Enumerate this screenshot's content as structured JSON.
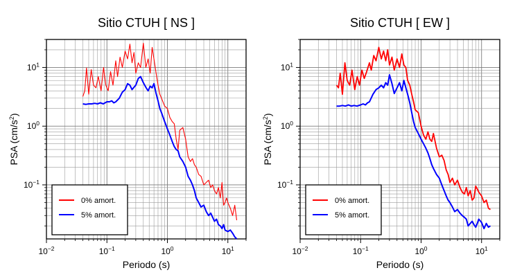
{
  "chart_data": [
    {
      "type": "line",
      "title": "Sitio CTUH [ NS ]",
      "xlabel": "Periodo (s)",
      "ylabel": "PSA (cm/s²)",
      "x_scale": "log",
      "y_scale": "log",
      "xlim": [
        0.01,
        20
      ],
      "ylim": [
        0.012,
        30
      ],
      "grid": true,
      "legend_position": "bottom-left",
      "x_tick_labels": [
        "10−2",
        "10−1",
        "100",
        "101"
      ],
      "y_tick_labels": [
        "10−1",
        "100",
        "101"
      ],
      "series": [
        {
          "name": "0% amort.",
          "color": "#ff0000",
          "x": [
            0.04,
            0.043,
            0.046,
            0.05,
            0.055,
            0.06,
            0.066,
            0.072,
            0.08,
            0.088,
            0.096,
            0.105,
            0.115,
            0.126,
            0.14,
            0.15,
            0.165,
            0.18,
            0.2,
            0.22,
            0.24,
            0.26,
            0.28,
            0.3,
            0.33,
            0.36,
            0.4,
            0.44,
            0.48,
            0.52,
            0.56,
            0.6,
            0.65,
            0.7,
            0.75,
            0.8,
            0.9,
            1.0,
            1.1,
            1.2,
            1.3,
            1.4,
            1.5,
            1.6,
            1.8,
            2.0,
            2.2,
            2.4,
            2.6,
            2.8,
            3.0,
            3.3,
            3.6,
            4.0,
            4.4,
            4.8,
            5.2,
            5.6,
            6.0,
            6.5,
            7.0,
            7.5,
            8.0,
            8.5,
            9.0,
            9.5,
            10.0,
            11.0,
            12.0,
            13.0,
            14.0
          ],
          "y": [
            3.2,
            4.0,
            9.8,
            3.5,
            9.2,
            5.0,
            4.5,
            7.0,
            4.0,
            10.0,
            5.0,
            4.0,
            8.5,
            5.0,
            13.0,
            7.0,
            15.0,
            10.0,
            19.0,
            14.0,
            25.0,
            12.0,
            18.0,
            8.0,
            12.0,
            10.0,
            26.0,
            10.0,
            14.0,
            8.0,
            22.0,
            14.0,
            8.0,
            5.0,
            3.5,
            3.0,
            2.2,
            2.0,
            1.4,
            1.2,
            1.1,
            0.6,
            0.4,
            0.85,
            0.95,
            0.6,
            0.3,
            0.25,
            0.28,
            0.22,
            0.2,
            0.15,
            0.14,
            0.1,
            0.11,
            0.12,
            0.09,
            0.1,
            0.08,
            0.07,
            0.09,
            0.06,
            0.11,
            0.045,
            0.05,
            0.06,
            0.05,
            0.04,
            0.03,
            0.045,
            0.025
          ]
        },
        {
          "name": "5% amort.",
          "color": "#0000ff",
          "x": [
            0.04,
            0.045,
            0.05,
            0.056,
            0.063,
            0.07,
            0.078,
            0.087,
            0.1,
            0.11,
            0.12,
            0.13,
            0.14,
            0.16,
            0.18,
            0.2,
            0.22,
            0.24,
            0.26,
            0.28,
            0.3,
            0.33,
            0.36,
            0.4,
            0.44,
            0.48,
            0.52,
            0.56,
            0.6,
            0.65,
            0.7,
            0.75,
            0.8,
            0.9,
            1.0,
            1.1,
            1.2,
            1.3,
            1.4,
            1.5,
            1.6,
            1.8,
            2.0,
            2.2,
            2.4,
            2.6,
            2.8,
            3.0,
            3.3,
            3.6,
            4.0,
            4.4,
            4.8,
            5.2,
            5.6,
            6.0,
            6.5,
            7.0,
            7.5,
            8.0,
            8.5,
            9.0,
            10.0,
            11.0,
            12.0,
            13.0,
            14.0
          ],
          "y": [
            2.4,
            2.35,
            2.4,
            2.4,
            2.45,
            2.4,
            2.5,
            2.4,
            2.6,
            2.6,
            2.7,
            2.5,
            2.6,
            3.0,
            3.8,
            4.2,
            5.3,
            5.0,
            4.2,
            4.6,
            5.0,
            6.5,
            7.0,
            5.5,
            4.6,
            4.0,
            4.8,
            4.5,
            5.3,
            3.6,
            2.7,
            2.0,
            1.7,
            1.2,
            0.9,
            0.7,
            0.55,
            0.45,
            0.4,
            0.38,
            0.3,
            0.25,
            0.2,
            0.14,
            0.12,
            0.1,
            0.08,
            0.06,
            0.05,
            0.042,
            0.045,
            0.035,
            0.03,
            0.033,
            0.028,
            0.024,
            0.026,
            0.021,
            0.02,
            0.018,
            0.021,
            0.017,
            0.016,
            0.017,
            0.015,
            0.013,
            0.012
          ]
        }
      ]
    },
    {
      "type": "line",
      "title": "Sitio CTUH [ EW ]",
      "xlabel": "Periodo (s)",
      "ylabel": "PSA (cm/s²)",
      "x_scale": "log",
      "y_scale": "log",
      "xlim": [
        0.01,
        20
      ],
      "ylim": [
        0.012,
        30
      ],
      "grid": true,
      "legend_position": "bottom-left",
      "x_tick_labels": [
        "10−2",
        "10−1",
        "100",
        "101"
      ],
      "y_tick_labels": [
        "10−1",
        "100",
        "101"
      ],
      "series": [
        {
          "name": "0% amort.",
          "color": "#ff0000",
          "x": [
            0.04,
            0.043,
            0.046,
            0.05,
            0.055,
            0.06,
            0.066,
            0.072,
            0.08,
            0.088,
            0.096,
            0.105,
            0.115,
            0.126,
            0.14,
            0.15,
            0.165,
            0.18,
            0.2,
            0.22,
            0.24,
            0.26,
            0.28,
            0.3,
            0.33,
            0.36,
            0.4,
            0.44,
            0.48,
            0.52,
            0.56,
            0.6,
            0.65,
            0.7,
            0.75,
            0.8,
            0.9,
            1.0,
            1.1,
            1.2,
            1.3,
            1.4,
            1.5,
            1.6,
            1.8,
            2.0,
            2.2,
            2.4,
            2.6,
            2.8,
            3.0,
            3.3,
            3.6,
            4.0,
            4.4,
            4.8,
            5.2,
            5.6,
            6.0,
            6.5,
            7.0,
            7.5,
            8.0,
            8.5,
            9.0,
            10.0,
            11.0,
            12.0,
            13.0,
            14.0
          ],
          "y": [
            5.0,
            4.5,
            8.0,
            3.5,
            12.0,
            6.0,
            5.0,
            9.0,
            4.2,
            7.0,
            5.0,
            9.0,
            6.5,
            8.5,
            12.0,
            9.0,
            16.0,
            13.0,
            22.0,
            14.0,
            19.0,
            13.0,
            20.0,
            11.0,
            15.0,
            9.0,
            14.0,
            10.0,
            17.0,
            11.0,
            10.0,
            6.0,
            5.0,
            3.5,
            2.6,
            1.9,
            1.7,
            1.0,
            0.7,
            0.6,
            0.8,
            0.6,
            0.55,
            0.75,
            0.42,
            0.3,
            0.32,
            0.26,
            0.18,
            0.15,
            0.11,
            0.13,
            0.1,
            0.12,
            0.09,
            0.075,
            0.07,
            0.09,
            0.065,
            0.08,
            0.055,
            0.06,
            0.095,
            0.085,
            0.075,
            0.065,
            0.05,
            0.055,
            0.04,
            0.038
          ]
        },
        {
          "name": "5% amort.",
          "color": "#0000ff",
          "x": [
            0.04,
            0.045,
            0.05,
            0.056,
            0.063,
            0.07,
            0.078,
            0.087,
            0.1,
            0.11,
            0.12,
            0.13,
            0.14,
            0.16,
            0.18,
            0.2,
            0.22,
            0.24,
            0.26,
            0.28,
            0.3,
            0.33,
            0.36,
            0.4,
            0.44,
            0.48,
            0.52,
            0.56,
            0.6,
            0.65,
            0.7,
            0.75,
            0.8,
            0.9,
            1.0,
            1.1,
            1.2,
            1.3,
            1.4,
            1.5,
            1.6,
            1.8,
            2.0,
            2.2,
            2.4,
            2.6,
            2.8,
            3.0,
            3.3,
            3.6,
            4.0,
            4.4,
            4.8,
            5.2,
            5.6,
            6.0,
            6.5,
            7.0,
            7.5,
            8.0,
            8.5,
            9.0,
            10.0,
            11.0,
            12.0,
            13.0,
            14.0
          ],
          "y": [
            2.2,
            2.2,
            2.25,
            2.2,
            2.3,
            2.2,
            2.25,
            2.2,
            2.3,
            2.4,
            2.3,
            2.5,
            2.6,
            3.5,
            4.2,
            4.5,
            5.0,
            4.5,
            5.5,
            5.0,
            7.5,
            5.3,
            3.6,
            4.5,
            5.5,
            4.0,
            6.0,
            4.5,
            3.5,
            2.5,
            1.7,
            1.2,
            0.95,
            0.75,
            0.6,
            0.5,
            0.42,
            0.35,
            0.28,
            0.22,
            0.19,
            0.15,
            0.13,
            0.1,
            0.08,
            0.065,
            0.055,
            0.05,
            0.042,
            0.035,
            0.038,
            0.033,
            0.03,
            0.028,
            0.026,
            0.02,
            0.022,
            0.024,
            0.021,
            0.019,
            0.022,
            0.026,
            0.023,
            0.018,
            0.022,
            0.019,
            0.02
          ]
        }
      ]
    }
  ]
}
